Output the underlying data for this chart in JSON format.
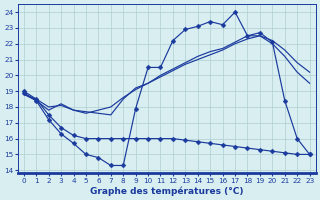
{
  "title": "Graphe des températures (°C)",
  "bg_color": "#d8eef0",
  "line_color": "#1a3a9e",
  "grid_color": "#b0cdd0",
  "x_ticks": [
    0,
    1,
    2,
    3,
    4,
    5,
    6,
    7,
    8,
    9,
    10,
    11,
    12,
    13,
    14,
    15,
    16,
    17,
    18,
    19,
    20,
    21,
    22,
    23
  ],
  "ylim": [
    13.8,
    24.5
  ],
  "xlim": [
    -0.5,
    23.5
  ],
  "yticks": [
    14,
    15,
    16,
    17,
    18,
    19,
    20,
    21,
    22,
    23,
    24
  ],
  "line1_x": [
    0,
    1,
    2,
    3,
    4,
    5,
    6,
    7,
    8,
    9,
    10,
    11,
    12,
    13,
    14,
    15,
    16,
    17,
    18,
    19,
    20,
    21,
    22,
    23
  ],
  "line1_y": [
    18.9,
    18.4,
    17.2,
    16.3,
    15.7,
    15.0,
    14.8,
    14.3,
    14.3,
    17.9,
    20.5,
    20.5,
    22.2,
    22.9,
    23.1,
    23.4,
    23.2,
    24.0,
    22.5,
    22.7,
    22.1,
    18.4,
    16.0,
    15.0
  ],
  "line2_x": [
    0,
    1,
    2,
    3,
    4,
    5,
    6,
    7,
    8,
    9,
    10,
    11,
    12,
    13,
    14,
    15,
    16,
    17,
    18,
    19,
    20,
    21,
    22,
    23
  ],
  "line2_y": [
    18.8,
    18.5,
    18.0,
    18.1,
    17.8,
    17.7,
    17.6,
    17.5,
    18.5,
    19.2,
    19.5,
    19.9,
    20.3,
    20.7,
    21.0,
    21.3,
    21.6,
    22.0,
    22.3,
    22.5,
    22.2,
    21.6,
    20.8,
    20.2
  ],
  "line3_x": [
    0,
    1,
    2,
    3,
    4,
    5,
    6,
    7,
    8,
    9,
    10,
    11,
    12,
    13,
    14,
    15,
    16,
    17,
    18,
    19,
    20,
    21,
    22,
    23
  ],
  "line3_y": [
    18.8,
    18.4,
    17.8,
    18.2,
    17.8,
    17.6,
    17.8,
    18.0,
    18.6,
    19.1,
    19.5,
    20.0,
    20.4,
    20.8,
    21.2,
    21.5,
    21.7,
    22.1,
    22.5,
    22.5,
    22.0,
    21.2,
    20.2,
    19.5
  ],
  "line4_x": [
    0,
    1,
    2,
    3,
    4,
    5,
    6,
    7,
    8,
    9,
    10,
    11,
    12,
    13,
    14,
    15,
    16,
    17,
    18,
    19,
    20,
    21,
    22,
    23
  ],
  "line4_y": [
    19.0,
    18.5,
    17.5,
    16.7,
    16.2,
    16.0,
    16.0,
    16.0,
    16.0,
    16.0,
    16.0,
    16.0,
    16.0,
    15.9,
    15.8,
    15.7,
    15.6,
    15.5,
    15.4,
    15.3,
    15.2,
    15.1,
    15.0,
    15.0
  ]
}
